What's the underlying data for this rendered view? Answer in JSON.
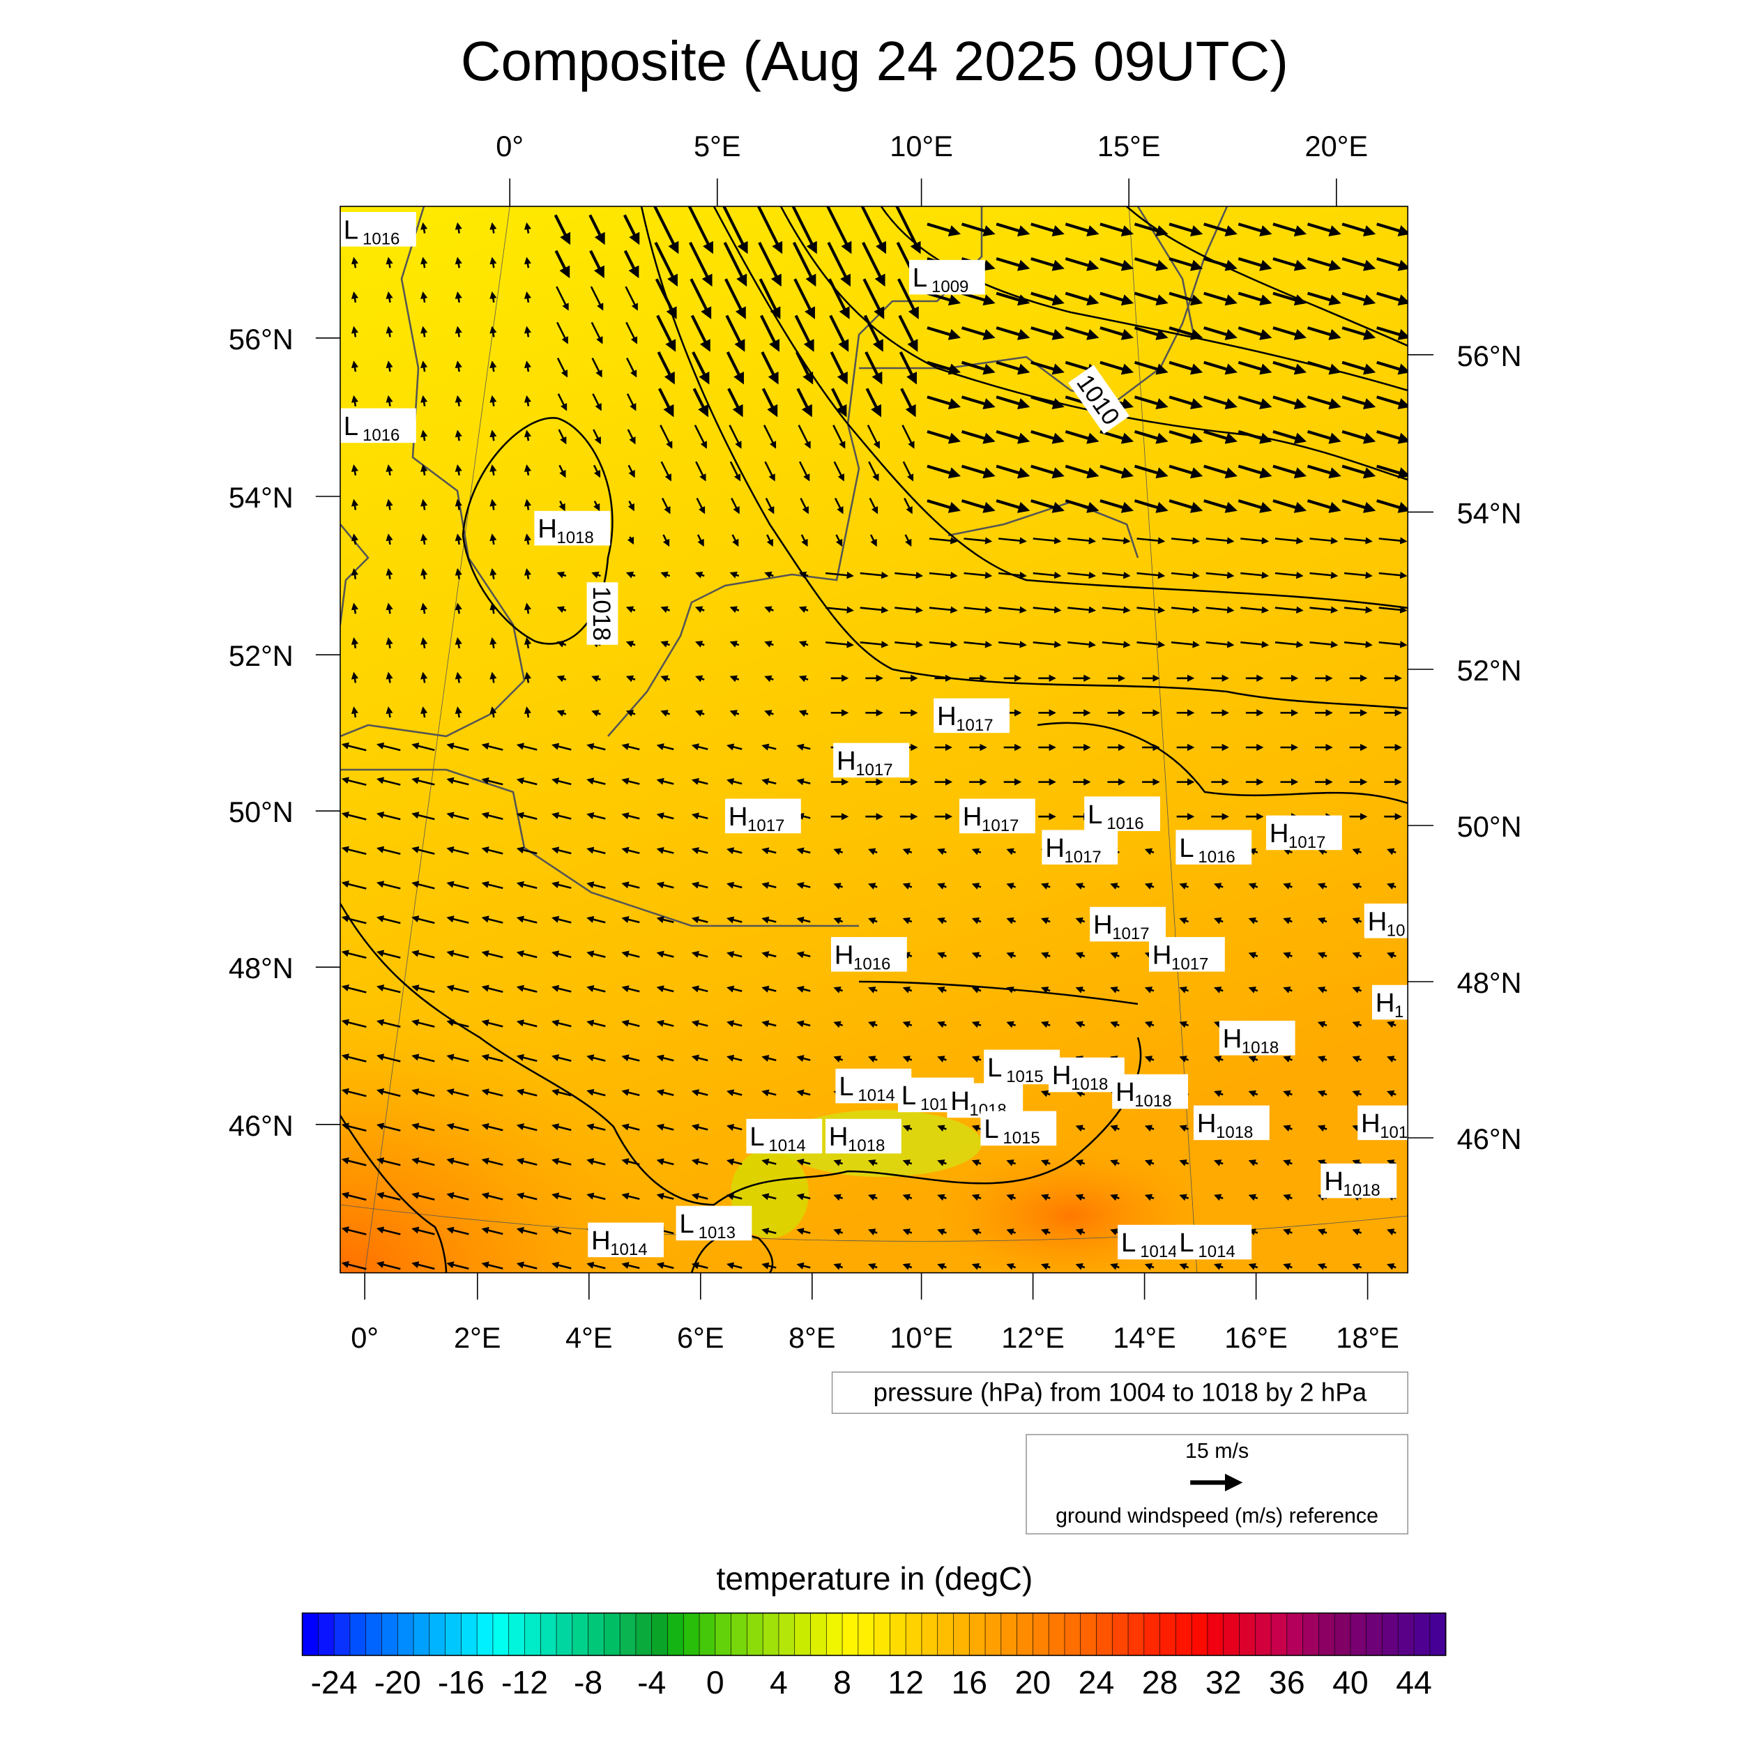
{
  "title": "Composite (Aug 24 2025 09UTC)",
  "top_lon_labels": [
    "0°",
    "5°E",
    "10°E",
    "15°E",
    "20°E"
  ],
  "bottom_lon_labels": [
    "0°",
    "2°E",
    "4°E",
    "6°E",
    "8°E",
    "10°E",
    "12°E",
    "14°E",
    "16°E",
    "18°E"
  ],
  "left_lat_labels": [
    "56°N",
    "54°N",
    "52°N",
    "50°N",
    "48°N",
    "46°N"
  ],
  "right_lat_labels": [
    "56°N",
    "54°N",
    "52°N",
    "50°N",
    "48°N",
    "46°N"
  ],
  "pressure_centers": [
    {
      "type": "L",
      "value": "1016"
    },
    {
      "type": "L",
      "value": "1016"
    },
    {
      "type": "L",
      "value": "1009"
    },
    {
      "type": "H",
      "value": "1018"
    },
    {
      "type": "H",
      "value": "1017"
    },
    {
      "type": "H",
      "value": "1017"
    },
    {
      "type": "H",
      "value": "1017"
    },
    {
      "type": "H",
      "value": "1017"
    },
    {
      "type": "L",
      "value": "1016"
    },
    {
      "type": "H",
      "value": "1017"
    },
    {
      "type": "L",
      "value": "1016"
    },
    {
      "type": "H",
      "value": "1017"
    },
    {
      "type": "H",
      "value": "10"
    },
    {
      "type": "H",
      "value": "1017"
    },
    {
      "type": "H",
      "value": "1017"
    },
    {
      "type": "H",
      "value": "1016"
    },
    {
      "type": "H",
      "value": "1"
    },
    {
      "type": "H",
      "value": "1018"
    },
    {
      "type": "L",
      "value": "1015"
    },
    {
      "type": "H",
      "value": "1018"
    },
    {
      "type": "H",
      "value": "1018"
    },
    {
      "type": "L",
      "value": "1014"
    },
    {
      "type": "L",
      "value": "1014"
    },
    {
      "type": "H",
      "value": "1018"
    },
    {
      "type": "H",
      "value": "1018"
    },
    {
      "type": "H",
      "value": "101"
    },
    {
      "type": "L",
      "value": "1014"
    },
    {
      "type": "H",
      "value": "1018"
    },
    {
      "type": "L",
      "value": "1015"
    },
    {
      "type": "H",
      "value": "1018"
    },
    {
      "type": "L",
      "value": "1013"
    },
    {
      "type": "H",
      "value": "1014"
    },
    {
      "type": "L",
      "value": "1014"
    },
    {
      "type": "L",
      "value": "1014"
    }
  ],
  "contour_labels": [
    "1018",
    "1010"
  ],
  "pressure_legend": "pressure (hPa) from 1004 to 1018 by 2 hPa",
  "wind_reference": {
    "speed": "15 m/s",
    "label": "ground windspeed (m/s) reference"
  },
  "colorbar": {
    "title": "temperature in (degC)",
    "min": -26,
    "max": 46,
    "step": 1,
    "tick_labels": [
      "-24",
      "-20",
      "-16",
      "-12",
      "-8",
      "-4",
      "0",
      "4",
      "8",
      "12",
      "16",
      "20",
      "24",
      "28",
      "32",
      "36",
      "40",
      "44"
    ],
    "colors": [
      "#0000ff",
      "#0a14ff",
      "#0a32ff",
      "#0050ff",
      "#0064ff",
      "#0078ff",
      "#008cff",
      "#00a0ff",
      "#00b4ff",
      "#00c8ff",
      "#00dcff",
      "#00f0ff",
      "#00fff0",
      "#00f5dc",
      "#00ebc8",
      "#00e1b4",
      "#00d7a0",
      "#00d28c",
      "#00c878",
      "#00be64",
      "#0ab450",
      "#0aaa3c",
      "#0aa528",
      "#14b414",
      "#28be0a",
      "#46c80a",
      "#64d20a",
      "#78d70a",
      "#8cdc0a",
      "#a0e10a",
      "#b4e60a",
      "#c8eb00",
      "#dcf000",
      "#f0f500",
      "#fff500",
      "#fff000",
      "#ffe600",
      "#ffdc00",
      "#ffd200",
      "#ffc800",
      "#ffbe00",
      "#ffb400",
      "#ffaa00",
      "#ffa000",
      "#ff9600",
      "#ff8c00",
      "#ff8200",
      "#ff7800",
      "#ff6e00",
      "#ff6400",
      "#ff5500",
      "#ff4600",
      "#ff3700",
      "#ff2800",
      "#ff1e00",
      "#ff1400",
      "#fa0a00",
      "#f00010",
      "#e6001e",
      "#dc002d",
      "#d2003c",
      "#c8004b",
      "#b4005a",
      "#a00060",
      "#8c0064",
      "#800066",
      "#780070",
      "#6e0078",
      "#640080",
      "#5a0088",
      "#500090",
      "#460096"
    ]
  }
}
